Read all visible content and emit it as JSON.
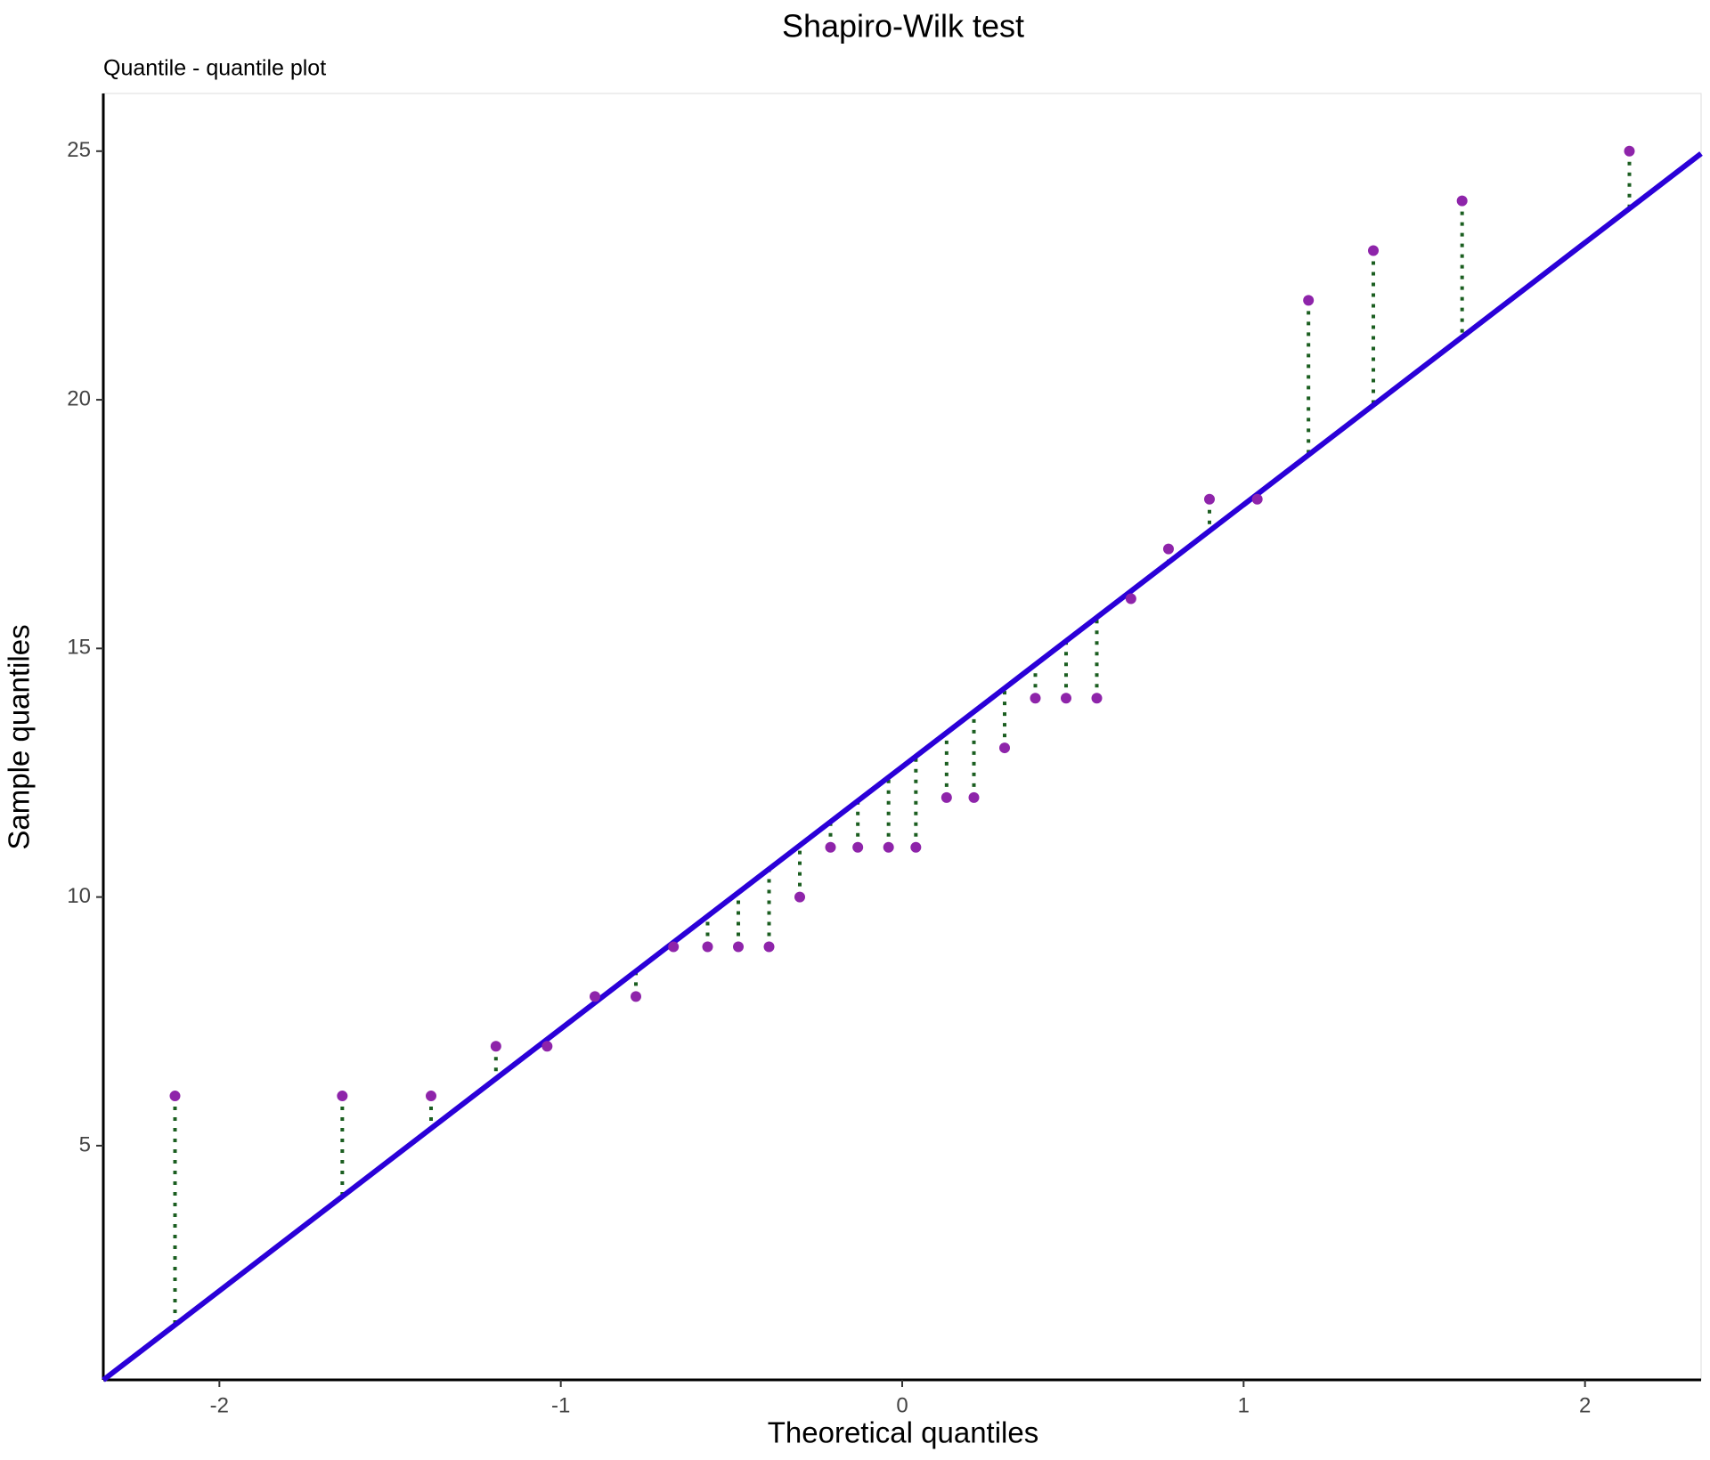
{
  "chart_data": {
    "type": "scatter",
    "title": "Shapiro-Wilk test",
    "subtitle": "Quantile - quantile plot",
    "x_label": "Theoretical quantiles",
    "y_label": "Sample quantiles",
    "x": [
      -2.13,
      -1.64,
      -1.38,
      -1.19,
      -1.04,
      -0.9,
      -0.78,
      -0.67,
      -0.57,
      -0.48,
      -0.39,
      -0.3,
      -0.21,
      -0.13,
      -0.04,
      0.04,
      0.13,
      0.21,
      0.3,
      0.39,
      0.48,
      0.57,
      0.67,
      0.78,
      0.9,
      1.04,
      1.19,
      1.38,
      1.64,
      2.13
    ],
    "values": [
      6,
      6,
      6,
      7,
      7,
      8,
      8,
      9,
      9,
      9,
      9,
      10,
      11,
      11,
      11,
      11,
      12,
      12,
      13,
      14,
      14,
      14,
      16,
      17,
      18,
      18,
      22,
      23,
      24,
      25
    ],
    "color": "#8e24aa",
    "line_color": "#2a00d8",
    "residual_color": "#1b5e20",
    "reference_line": {
      "intercept": 12.62,
      "slope": 5.27
    },
    "xlim": [
      -2.34,
      2.34
    ],
    "ylim": [
      0.29,
      26.16
    ],
    "xticks": [
      -2,
      -1,
      0,
      1,
      2
    ],
    "yticks": [
      5,
      10,
      15,
      20,
      25
    ]
  }
}
